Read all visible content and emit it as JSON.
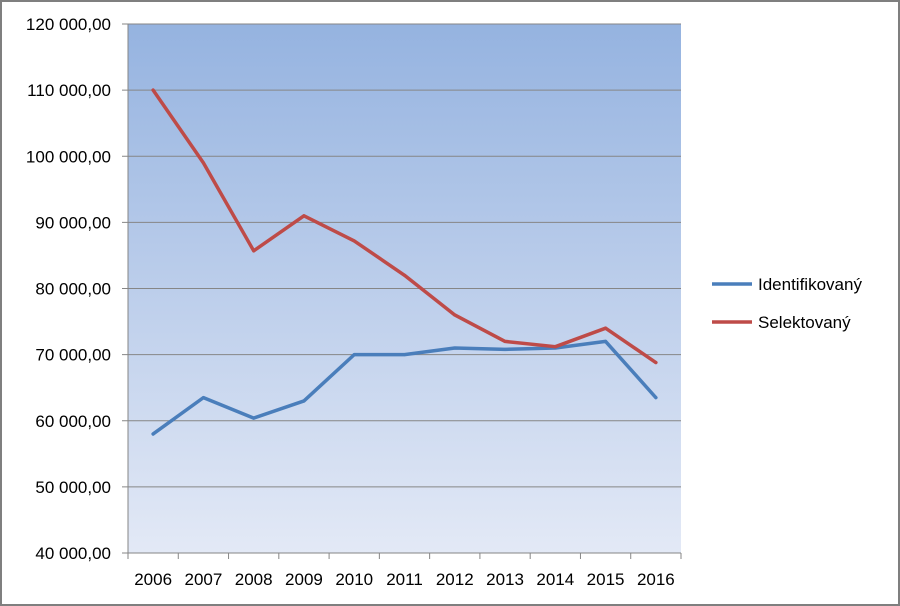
{
  "chart_data": {
    "type": "line",
    "title": "",
    "xlabel": "",
    "ylabel": "",
    "x": [
      "2006",
      "2007",
      "2008",
      "2009",
      "2010",
      "2011",
      "2012",
      "2013",
      "2014",
      "2015",
      "2016"
    ],
    "ylim": [
      40000,
      120000
    ],
    "yticks": [
      40000,
      50000,
      60000,
      70000,
      80000,
      90000,
      100000,
      110000,
      120000
    ],
    "ytick_labels": [
      "40 000,00",
      "50 000,00",
      "60 000,00",
      "70 000,00",
      "80 000,00",
      "90 000,00",
      "100 000,00",
      "110 000,00",
      "120 000,00"
    ],
    "grid": true,
    "legend_position": "right",
    "series": [
      {
        "name": "Identifikovaný",
        "color": "#4a7ebb",
        "values": [
          58000,
          63500,
          60400,
          63000,
          70000,
          70000,
          71000,
          70800,
          71000,
          72000,
          63500
        ]
      },
      {
        "name": "Selektovaný",
        "color": "#be4b48",
        "values": [
          110000,
          99000,
          85700,
          91000,
          87200,
          82000,
          76000,
          72000,
          71200,
          74000,
          68800
        ]
      }
    ]
  }
}
